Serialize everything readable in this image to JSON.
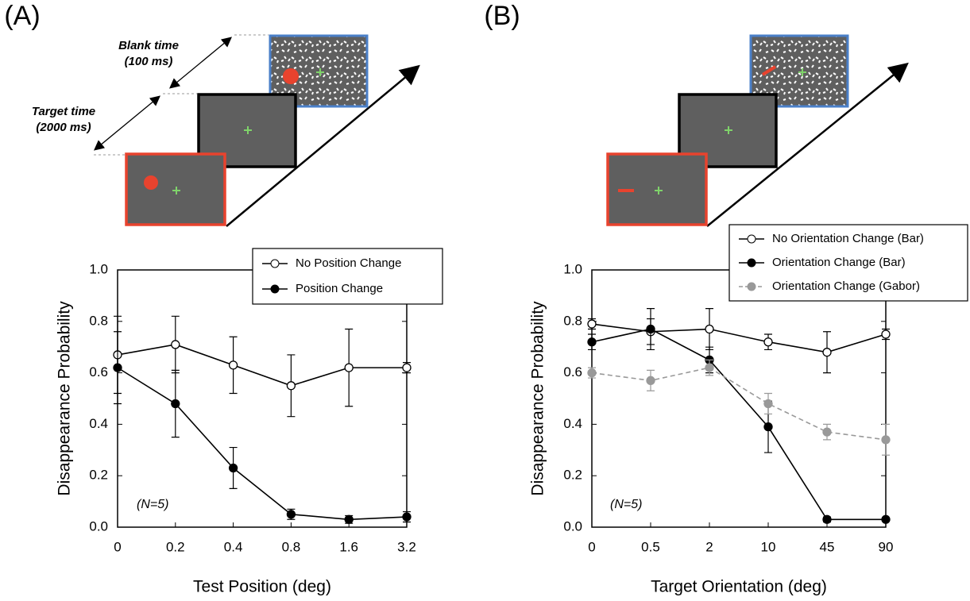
{
  "chart_data": [
    {
      "type": "line",
      "panel_label": "(A)",
      "diagram_labels": [
        "Blank time",
        "(100 ms)",
        "Target time",
        "(2000 ms)"
      ],
      "annotation": "(N=5)",
      "xlabel": "Test Position (deg)",
      "ylabel": "Disappearance Probability",
      "categories": [
        "0",
        "0.2",
        "0.4",
        "0.8",
        "1.6",
        "3.2"
      ],
      "ylim": [
        0,
        1
      ],
      "yticks": [
        {
          "value": 0,
          "label": "0.0"
        },
        0.2,
        0.4,
        0.6,
        0.8,
        {
          "value": 1,
          "label": "1.0"
        }
      ],
      "series": [
        {
          "name": "No Position Change",
          "color": "#000000",
          "marker": "open",
          "dashed": false,
          "values": [
            0.67,
            0.71,
            0.63,
            0.55,
            0.62,
            0.62
          ],
          "errors": [
            0.15,
            0.11,
            0.11,
            0.12,
            0.15,
            0.02
          ]
        },
        {
          "name": "Position Change",
          "color": "#000000",
          "marker": "filled",
          "dashed": false,
          "values": [
            0.62,
            0.48,
            0.23,
            0.05,
            0.03,
            0.04
          ],
          "errors": [
            0.14,
            0.13,
            0.08,
            0.02,
            0.015,
            0.02
          ]
        }
      ]
    },
    {
      "type": "line",
      "panel_label": "(B)",
      "annotation": "(N=5)",
      "xlabel": "Target Orientation (deg)",
      "ylabel": "Disappearance Probability",
      "categories": [
        "0",
        "0.5",
        "2",
        "10",
        "45",
        "90"
      ],
      "ylim": [
        0,
        1
      ],
      "yticks": [
        {
          "value": 0,
          "label": "0.0"
        },
        0.2,
        0.4,
        0.6,
        0.8,
        {
          "value": 1,
          "label": "1.0"
        }
      ],
      "series": [
        {
          "name": "No Orientation Change (Bar)",
          "color": "#000000",
          "marker": "open",
          "dashed": false,
          "values": [
            0.79,
            0.76,
            0.77,
            0.72,
            0.68,
            0.75
          ],
          "errors": [
            0.02,
            0.05,
            0.08,
            0.03,
            0.08,
            0.02
          ]
        },
        {
          "name": "Orientation Change (Bar)",
          "color": "#000000",
          "marker": "filled",
          "dashed": false,
          "values": [
            0.72,
            0.77,
            0.65,
            0.39,
            0.03,
            0.03
          ],
          "errors": [
            0.03,
            0.08,
            0.05,
            0.1,
            0.01,
            0.005
          ]
        },
        {
          "name": "Orientation Change (Gabor)",
          "color": "#999999",
          "marker": "filled",
          "dashed": true,
          "values": [
            0.6,
            0.57,
            0.62,
            0.48,
            0.37,
            0.34
          ],
          "errors": [
            0.02,
            0.04,
            0.03,
            0.04,
            0.03,
            0.06
          ]
        }
      ]
    }
  ]
}
